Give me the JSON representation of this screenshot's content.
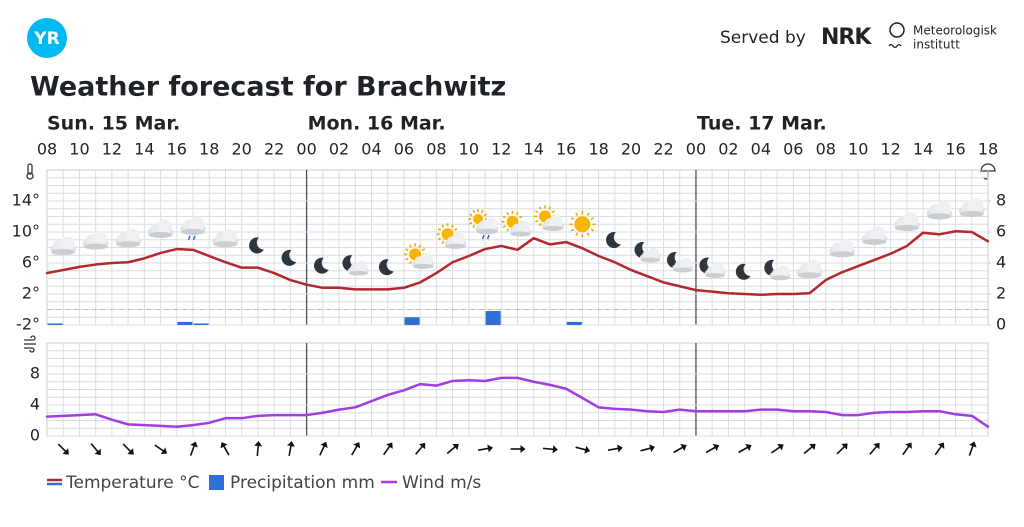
{
  "header": {
    "logo": "YR",
    "served_by": "Served by",
    "partners": [
      "NRK",
      "Meteorologisk",
      "institutt"
    ]
  },
  "chart_data": [
    {
      "type": "line",
      "title": "Weather forecast for Brachwitz",
      "days": [
        "Sun. 15 Mar.",
        "Mon. 16 Mar.",
        "Tue. 17 Mar."
      ],
      "categories": [
        "08",
        null,
        "10",
        null,
        "12",
        null,
        "14",
        null,
        "16",
        null,
        "18",
        null,
        "20",
        null,
        "22",
        null,
        "00",
        null,
        "02",
        null,
        "04",
        null,
        "06",
        null,
        "08",
        null,
        "10",
        null,
        "12",
        null,
        "14",
        null,
        "16",
        null,
        "18",
        null,
        "20",
        null,
        "22",
        null,
        "00",
        null,
        "02",
        null,
        "04",
        null,
        "06",
        null,
        "08",
        null,
        "10",
        null,
        "12",
        null,
        "14",
        null,
        "16",
        null,
        "18"
      ],
      "ylim": [
        -2,
        18
      ],
      "yticks": [
        {
          "value": -2,
          "label": "-2°"
        },
        {
          "value": 2,
          "label": "2°"
        },
        {
          "value": 6,
          "label": "6°"
        },
        {
          "value": 10,
          "label": "10°"
        },
        {
          "value": 14,
          "label": "14°"
        }
      ],
      "y2lim": [
        0,
        10
      ],
      "y2ticks": [
        0,
        2,
        4,
        6,
        8
      ],
      "grid": true,
      "series": [
        {
          "name": "Temperature °C",
          "color": "#b3282d",
          "values": [
            4.7,
            5.1,
            5.5,
            5.8,
            6.0,
            6.1,
            6.6,
            7.3,
            7.8,
            7.7,
            6.9,
            6.1,
            5.4,
            5.4,
            4.7,
            3.8,
            3.2,
            2.8,
            2.8,
            2.6,
            2.6,
            2.6,
            2.8,
            3.5,
            4.7,
            6.1,
            6.9,
            7.8,
            8.2,
            7.7,
            9.2,
            8.4,
            8.7,
            7.9,
            6.9,
            6.1,
            5.1,
            4.3,
            3.5,
            3.0,
            2.5,
            2.3,
            2.1,
            2.0,
            1.9,
            2.0,
            2.0,
            2.1,
            3.8,
            4.8,
            5.6,
            6.4,
            7.2,
            8.2,
            9.9,
            9.7,
            10.1,
            10.0,
            8.8
          ]
        },
        {
          "name": "Precipitation mm",
          "color": "#2f6fd6",
          "type": "bar",
          "axis": "y2",
          "values": [
            0.1,
            0,
            0,
            0,
            0,
            0,
            0,
            0,
            0.2,
            0.1,
            0,
            0,
            0,
            0,
            0,
            0,
            0,
            0,
            0,
            0,
            0,
            0,
            0.5,
            0,
            0,
            0,
            0,
            0.9,
            0,
            0,
            0,
            0,
            0.2,
            0,
            0,
            0,
            0,
            0,
            0,
            0,
            0,
            0,
            0,
            0,
            0,
            0,
            0,
            0,
            0,
            0,
            0,
            0,
            0,
            0,
            0,
            0,
            0,
            0,
            0
          ]
        }
      ]
    },
    {
      "type": "line",
      "ylim": [
        0,
        12
      ],
      "yticks": [
        0,
        4,
        8
      ],
      "grid": true,
      "series": [
        {
          "name": "Wind m/s",
          "color": "#a23de0",
          "values": [
            2.5,
            2.6,
            2.7,
            2.8,
            2.1,
            1.5,
            1.4,
            1.3,
            1.2,
            1.4,
            1.7,
            2.3,
            2.3,
            2.6,
            2.7,
            2.7,
            2.7,
            3.0,
            3.4,
            3.7,
            4.5,
            5.3,
            5.9,
            6.7,
            6.5,
            7.1,
            7.2,
            7.1,
            7.5,
            7.5,
            7.0,
            6.6,
            6.1,
            4.9,
            3.7,
            3.5,
            3.4,
            3.2,
            3.1,
            3.4,
            3.2,
            3.2,
            3.2,
            3.2,
            3.4,
            3.4,
            3.2,
            3.2,
            3.1,
            2.7,
            2.7,
            3.0,
            3.1,
            3.1,
            3.2,
            3.2,
            2.8,
            2.6,
            1.2
          ]
        }
      ],
      "wind_direction": [
        null,
        135,
        null,
        140,
        null,
        135,
        null,
        125,
        null,
        20,
        null,
        330,
        null,
        5,
        null,
        10,
        null,
        25,
        null,
        30,
        null,
        35,
        null,
        40,
        null,
        50,
        null,
        80,
        null,
        90,
        null,
        95,
        null,
        105,
        null,
        80,
        null,
        75,
        null,
        60,
        null,
        60,
        null,
        60,
        null,
        55,
        null,
        50,
        null,
        45,
        null,
        40,
        null,
        35,
        null,
        35,
        null,
        20,
        null
      ]
    }
  ]
}
